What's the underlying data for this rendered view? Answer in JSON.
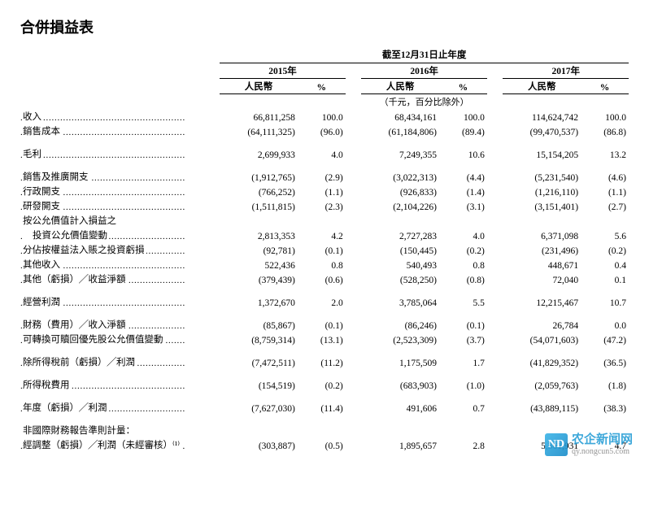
{
  "title": "合併損益表",
  "period_caption": "截至12月31日止年度",
  "year_headers": [
    "2015年",
    "2016年",
    "2017年"
  ],
  "currency_label": "人民幣",
  "percent_label": "%",
  "unit_note": "（千元，百分比除外）",
  "rows": [
    {
      "type": "data",
      "label": "收入",
      "v": [
        "66,811,258",
        "100.0",
        "68,434,161",
        "100.0",
        "114,624,742",
        "100.0"
      ]
    },
    {
      "type": "data",
      "label": "銷售成本",
      "v": [
        "(64,111,325)",
        "(96.0)",
        "(61,184,806)",
        "(89.4)",
        "(99,470,537)",
        "(86.8)"
      ]
    },
    {
      "type": "spacer"
    },
    {
      "type": "data",
      "label": "毛利",
      "v": [
        "2,699,933",
        "4.0",
        "7,249,355",
        "10.6",
        "15,154,205",
        "13.2"
      ]
    },
    {
      "type": "spacer"
    },
    {
      "type": "data",
      "label": "銷售及推廣開支",
      "v": [
        "(1,912,765)",
        "(2.9)",
        "(3,022,313)",
        "(4.4)",
        "(5,231,540)",
        "(4.6)"
      ]
    },
    {
      "type": "data",
      "label": "行政開支",
      "v": [
        "(766,252)",
        "(1.1)",
        "(926,833)",
        "(1.4)",
        "(1,216,110)",
        "(1.1)"
      ]
    },
    {
      "type": "data",
      "label": "研發開支",
      "v": [
        "(1,511,815)",
        "(2.3)",
        "(2,104,226)",
        "(3.1)",
        "(3,151,401)",
        "(2.7)"
      ]
    },
    {
      "type": "label_only",
      "label": "按公允價值計入損益之"
    },
    {
      "type": "data",
      "label": "投資公允價值變動",
      "indent": true,
      "v": [
        "2,813,353",
        "4.2",
        "2,727,283",
        "4.0",
        "6,371,098",
        "5.6"
      ]
    },
    {
      "type": "data",
      "label": "分佔按權益法入賬之投資虧損",
      "v": [
        "(92,781)",
        "(0.1)",
        "(150,445)",
        "(0.2)",
        "(231,496)",
        "(0.2)"
      ]
    },
    {
      "type": "data",
      "label": "其他收入",
      "v": [
        "522,436",
        "0.8",
        "540,493",
        "0.8",
        "448,671",
        "0.4"
      ]
    },
    {
      "type": "data",
      "label": "其他（虧損）╱收益淨額",
      "v": [
        "(379,439)",
        "(0.6)",
        "(528,250)",
        "(0.8)",
        "72,040",
        "0.1"
      ]
    },
    {
      "type": "spacer"
    },
    {
      "type": "data",
      "label": "經營利潤",
      "v": [
        "1,372,670",
        "2.0",
        "3,785,064",
        "5.5",
        "12,215,467",
        "10.7"
      ]
    },
    {
      "type": "spacer"
    },
    {
      "type": "data",
      "label": "財務（費用）╱收入淨額",
      "v": [
        "(85,867)",
        "(0.1)",
        "(86,246)",
        "(0.1)",
        "26,784",
        "0.0"
      ]
    },
    {
      "type": "data",
      "label": "可轉換可贖回優先股公允價值變動",
      "v": [
        "(8,759,314)",
        "(13.1)",
        "(2,523,309)",
        "(3.7)",
        "(54,071,603)",
        "(47.2)"
      ]
    },
    {
      "type": "spacer"
    },
    {
      "type": "data",
      "label": "除所得稅前（虧損）╱利潤",
      "v": [
        "(7,472,511)",
        "(11.2)",
        "1,175,509",
        "1.7",
        "(41,829,352)",
        "(36.5)"
      ]
    },
    {
      "type": "spacer"
    },
    {
      "type": "data",
      "label": "所得稅費用",
      "v": [
        "(154,519)",
        "(0.2)",
        "(683,903)",
        "(1.0)",
        "(2,059,763)",
        "(1.8)"
      ]
    },
    {
      "type": "spacer"
    },
    {
      "type": "data",
      "label": "年度（虧損）╱利潤",
      "v": [
        "(7,627,030)",
        "(11.4)",
        "491,606",
        "0.7",
        "(43,889,115)",
        "(38.3)"
      ]
    },
    {
      "type": "spacer"
    },
    {
      "type": "label_only",
      "label": "非國際財務報告準則計量："
    },
    {
      "type": "data",
      "label": "經調整（虧損）╱利潤（未經審核）⁽¹⁾",
      "v": [
        "(303,887)",
        "(0.5)",
        "1,895,657",
        "2.8",
        "5,361,931",
        "4.7"
      ]
    }
  ],
  "watermark": {
    "logo": "ND",
    "text": "农企新闻网",
    "url": "qy.nongcun5.com"
  },
  "colors": {
    "text": "#000000",
    "bg": "#ffffff",
    "wm": "#2a9fd6"
  }
}
